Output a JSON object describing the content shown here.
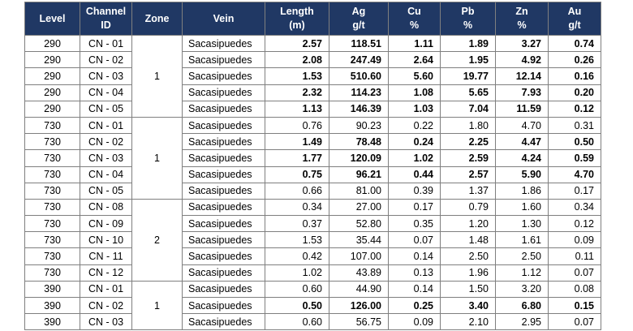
{
  "table": {
    "headers": [
      [
        "Level"
      ],
      [
        "Channel",
        "ID"
      ],
      [
        "Zone"
      ],
      [
        "Vein"
      ],
      [
        "Length",
        "(m)"
      ],
      [
        "Ag",
        "g/t"
      ],
      [
        "Cu",
        "%"
      ],
      [
        "Pb",
        "%"
      ],
      [
        "Zn",
        "%"
      ],
      [
        "Au",
        "g/t"
      ]
    ],
    "groups": [
      {
        "zone": "1",
        "rows": [
          {
            "bold": true,
            "cells": [
              "290",
              "CN - 01",
              "Sacasipuedes",
              "2.57",
              "118.51",
              "1.11",
              "1.89",
              "3.27",
              "0.74"
            ]
          },
          {
            "bold": true,
            "cells": [
              "290",
              "CN - 02",
              "Sacasipuedes",
              "2.08",
              "247.49",
              "2.64",
              "1.95",
              "4.92",
              "0.26"
            ]
          },
          {
            "bold": true,
            "cells": [
              "290",
              "CN - 03",
              "Sacasipuedes",
              "1.53",
              "510.60",
              "5.60",
              "19.77",
              "12.14",
              "0.16"
            ]
          },
          {
            "bold": true,
            "cells": [
              "290",
              "CN - 04",
              "Sacasipuedes",
              "2.32",
              "114.23",
              "1.08",
              "5.65",
              "7.93",
              "0.20"
            ]
          },
          {
            "bold": true,
            "cells": [
              "290",
              "CN - 05",
              "Sacasipuedes",
              "1.13",
              "146.39",
              "1.03",
              "7.04",
              "11.59",
              "0.12"
            ]
          }
        ]
      },
      {
        "zone": "1",
        "rows": [
          {
            "bold": false,
            "cells": [
              "730",
              "CN - 01",
              "Sacasipuedes",
              "0.76",
              "90.23",
              "0.22",
              "1.80",
              "4.70",
              "0.31"
            ]
          },
          {
            "bold": true,
            "cells": [
              "730",
              "CN - 02",
              "Sacasipuedes",
              "1.49",
              "78.48",
              "0.24",
              "2.25",
              "4.47",
              "0.50"
            ]
          },
          {
            "bold": true,
            "cells": [
              "730",
              "CN - 03",
              "Sacasipuedes",
              "1.77",
              "120.09",
              "1.02",
              "2.59",
              "4.24",
              "0.59"
            ]
          },
          {
            "bold": true,
            "cells": [
              "730",
              "CN - 04",
              "Sacasipuedes",
              "0.75",
              "96.21",
              "0.44",
              "2.57",
              "5.90",
              "4.70"
            ]
          },
          {
            "bold": false,
            "cells": [
              "730",
              "CN - 05",
              "Sacasipuedes",
              "0.66",
              "81.00",
              "0.39",
              "1.37",
              "1.86",
              "0.17"
            ]
          }
        ]
      },
      {
        "zone": "2",
        "rows": [
          {
            "bold": false,
            "cells": [
              "730",
              "CN - 08",
              "Sacasipuedes",
              "0.34",
              "27.00",
              "0.17",
              "0.79",
              "1.60",
              "0.34"
            ]
          },
          {
            "bold": false,
            "cells": [
              "730",
              "CN - 09",
              "Sacasipuedes",
              "0.37",
              "52.80",
              "0.35",
              "1.20",
              "1.30",
              "0.12"
            ]
          },
          {
            "bold": false,
            "cells": [
              "730",
              "CN - 10",
              "Sacasipuedes",
              "1.53",
              "35.44",
              "0.07",
              "1.48",
              "1.61",
              "0.09"
            ]
          },
          {
            "bold": false,
            "cells": [
              "730",
              "CN - 11",
              "Sacasipuedes",
              "0.42",
              "107.00",
              "0.14",
              "2.50",
              "2.50",
              "0.11"
            ]
          },
          {
            "bold": false,
            "cells": [
              "730",
              "CN - 12",
              "Sacasipuedes",
              "1.02",
              "43.89",
              "0.13",
              "1.96",
              "1.12",
              "0.07"
            ]
          }
        ]
      },
      {
        "zone": "1",
        "rows": [
          {
            "bold": false,
            "cells": [
              "390",
              "CN - 01",
              "Sacasipuedes",
              "0.60",
              "44.90",
              "0.14",
              "1.50",
              "3.20",
              "0.08"
            ]
          },
          {
            "bold": true,
            "cells": [
              "390",
              "CN - 02",
              "Sacasipuedes",
              "0.50",
              "126.00",
              "0.25",
              "3.40",
              "6.80",
              "0.15"
            ]
          },
          {
            "bold": false,
            "cells": [
              "390",
              "CN - 03",
              "Sacasipuedes",
              "0.60",
              "56.75",
              "0.09",
              "2.10",
              "2.95",
              "0.07"
            ]
          }
        ]
      }
    ]
  }
}
